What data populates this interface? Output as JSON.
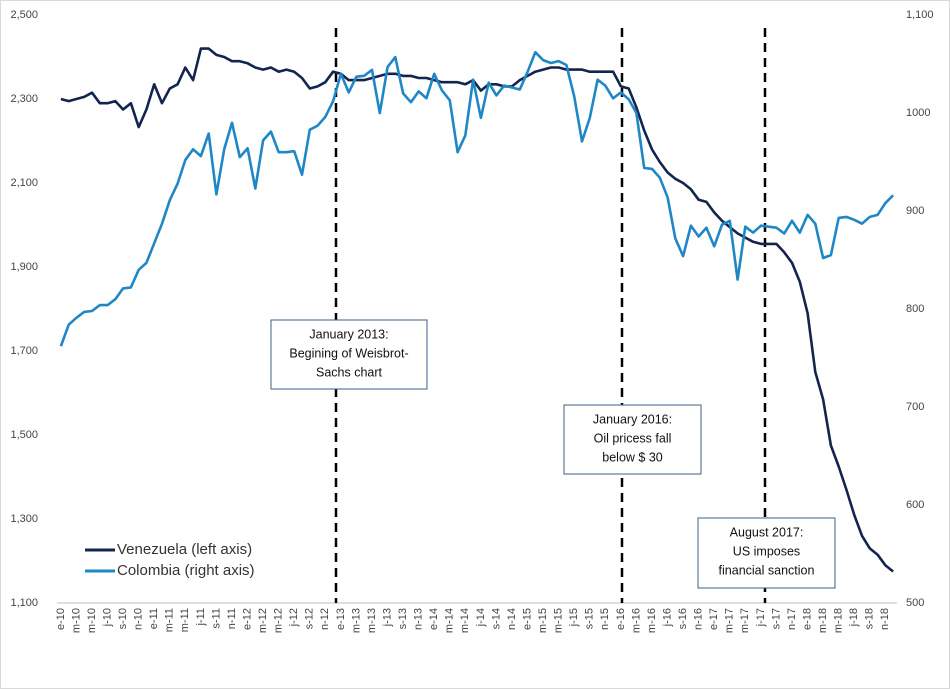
{
  "chart_data": {
    "type": "line",
    "categories": [
      "e-10",
      null,
      "m-10",
      null,
      "m-10",
      null,
      "j-10",
      null,
      "s-10",
      null,
      "n-10",
      null,
      "e-11",
      null,
      "m-11",
      null,
      "m-11",
      null,
      "j-11",
      null,
      "s-11",
      null,
      "n-11",
      null,
      "e-12",
      null,
      "m-12",
      null,
      "m-12",
      null,
      "j-12",
      null,
      "s-12",
      null,
      "n-12",
      null,
      "e-13",
      null,
      "m-13",
      null,
      "m-13",
      null,
      "j-13",
      null,
      "s-13",
      null,
      "n-13",
      null,
      "e-14",
      null,
      "m-14",
      null,
      "m-14",
      null,
      "j-14",
      null,
      "s-14",
      null,
      "n-14",
      null,
      "e-15",
      null,
      "m-15",
      null,
      "m-15",
      null,
      "j-15",
      null,
      "s-15",
      null,
      "n-15",
      null,
      "e-16",
      null,
      "m-16",
      null,
      "m-16",
      null,
      "j-16",
      null,
      "s-16",
      null,
      "n-16",
      null,
      "e-17",
      null,
      "m-17",
      null,
      "m-17",
      null,
      "j-17",
      null,
      "s-17",
      null,
      "n-17",
      null,
      "e-18",
      null,
      "m-18",
      null,
      "m-18",
      null,
      "j-18",
      null,
      "s-18",
      null,
      "n-18",
      null
    ],
    "series": [
      {
        "name": "Venezuela (left axis)",
        "color": "#13254f",
        "values": [
          2300,
          2295,
          2300,
          2305,
          2315,
          2290,
          2290,
          2295,
          2275,
          2290,
          2233,
          2275,
          2335,
          2290,
          2325,
          2335,
          2375,
          2345,
          2420,
          2420,
          2405,
          2400,
          2390,
          2390,
          2385,
          2375,
          2370,
          2375,
          2365,
          2370,
          2365,
          2350,
          2325,
          2330,
          2340,
          2365,
          2360,
          2345,
          2345,
          2345,
          2350,
          2355,
          2360,
          2360,
          2355,
          2355,
          2350,
          2350,
          2345,
          2340,
          2340,
          2340,
          2335,
          2345,
          2320,
          2335,
          2335,
          2330,
          2330,
          2345,
          2355,
          2365,
          2370,
          2375,
          2375,
          2370,
          2370,
          2370,
          2365,
          2365,
          2365,
          2365,
          2330,
          2325,
          2280,
          2225,
          2180,
          2150,
          2125,
          2110,
          2100,
          2085,
          2060,
          2055,
          2030,
          2010,
          1995,
          1980,
          1970,
          1960,
          1955,
          1955,
          1955,
          1935,
          1910,
          1865,
          1790,
          1650,
          1585,
          1475,
          1425,
          1370,
          1310,
          1260,
          1230,
          1215,
          1190,
          1175
        ]
      },
      {
        "name": "Colombia (right axis)",
        "color": "#1f87c6",
        "axis": "y2",
        "values": [
          762,
          784,
          791,
          797,
          798,
          804,
          804,
          810,
          821,
          822,
          840,
          847,
          867,
          887,
          911,
          928,
          952,
          963,
          956,
          979,
          917,
          963,
          990,
          955,
          964,
          923,
          972,
          981,
          960,
          960,
          961,
          937,
          983,
          987,
          996,
          1012,
          1040,
          1021,
          1037,
          1038,
          1044,
          1000,
          1047,
          1057,
          1020,
          1011,
          1022,
          1015,
          1040,
          1023,
          1013,
          960,
          977,
          1034,
          995,
          1031,
          1018,
          1028,
          1026,
          1024,
          1042,
          1062,
          1054,
          1051,
          1053,
          1049,
          1017,
          971,
          995,
          1034,
          1028,
          1015,
          1021,
          1014,
          1000,
          944,
          943,
          934,
          914,
          872,
          854,
          885,
          874,
          883,
          864,
          886,
          890,
          830,
          884,
          878,
          885,
          884,
          883,
          877,
          890,
          878,
          896,
          887,
          852,
          855,
          893,
          894,
          891,
          887,
          894,
          896,
          908,
          916
        ]
      }
    ],
    "ylim": [
      1100,
      2500
    ],
    "yticks": [
      {
        "value": 1100,
        "label": "1,100"
      },
      {
        "value": 1300,
        "label": "1,300"
      },
      {
        "value": 1500,
        "label": "1,500"
      },
      {
        "value": 1700,
        "label": "1,700"
      },
      {
        "value": 1900,
        "label": "1,900"
      },
      {
        "value": 2100,
        "label": "2,100"
      },
      {
        "value": 2300,
        "label": "2,300"
      },
      {
        "value": 2500,
        "label": "2,500"
      }
    ],
    "y2lim": [
      500,
      1100
    ],
    "y2ticks": [
      500,
      600,
      700,
      800,
      900,
      1000,
      {
        "value": 1100,
        "label": "1,100"
      }
    ],
    "legend": "lower-left",
    "annotations": [
      {
        "lines": [
          "January 2013:",
          "Begining of Weisbrot-",
          "Sachs chart"
        ]
      },
      {
        "lines": [
          "January 2016:",
          "Oil pricess fall",
          "below $ 30"
        ]
      },
      {
        "lines": [
          "August 2017:",
          "US imposes",
          "financial sanction"
        ]
      }
    ]
  }
}
